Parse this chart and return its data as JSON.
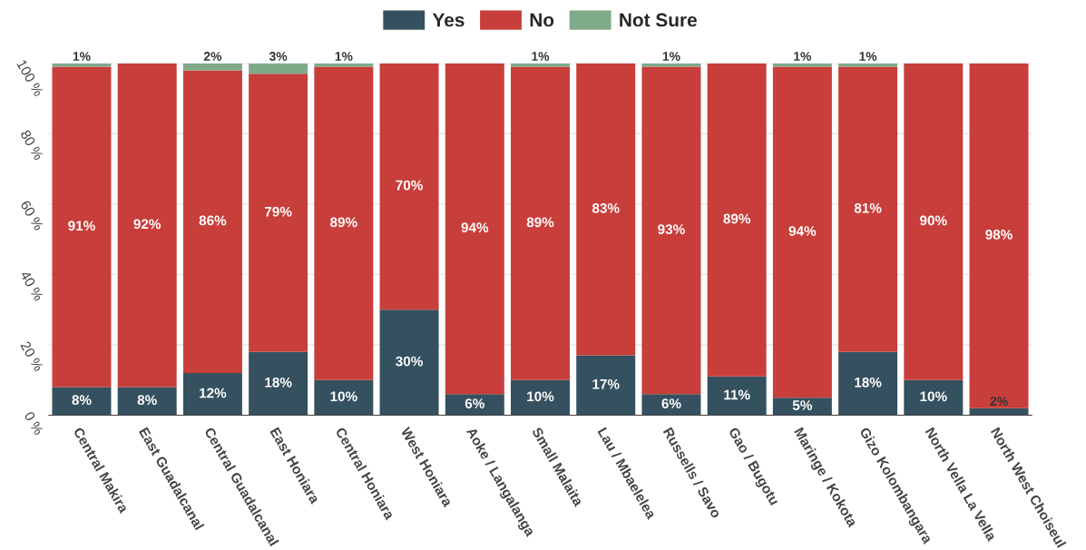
{
  "chart_data": {
    "type": "bar",
    "stacked": true,
    "categories": [
      "Central Makira",
      "East Guadalcanal",
      "Central Guadalcanal",
      "East Honiara",
      "Central Honiara",
      "West Honiara",
      "Aoke / Langalanga",
      "Small Malaita",
      "Lau / Mbaelelea",
      "Russells / Savo",
      "Gao / Bugotu",
      "Maringe / Kokota",
      "Gizo Kolombangara",
      "North Vella La Vella",
      "North West Choiseul"
    ],
    "series": [
      {
        "name": "Yes",
        "color": "#35505f",
        "values": [
          8,
          8,
          12,
          18,
          10,
          30,
          6,
          10,
          17,
          6,
          11,
          5,
          18,
          10,
          2
        ],
        "value_labels": [
          "8%",
          "8%",
          "12%",
          "18%",
          "10%",
          "30%",
          "6%",
          "10%",
          "17%",
          "6%",
          "11%",
          "5%",
          "18%",
          "10%",
          "2%"
        ]
      },
      {
        "name": "No",
        "color": "#c83e3a",
        "values": [
          91,
          92,
          86,
          79,
          89,
          70,
          94,
          89,
          83,
          93,
          89,
          94,
          81,
          90,
          98
        ],
        "value_labels": [
          "91%",
          "92%",
          "86%",
          "79%",
          "89%",
          "70%",
          "94%",
          "89%",
          "83%",
          "93%",
          "89%",
          "94%",
          "81%",
          "90%",
          "98%"
        ]
      },
      {
        "name": "Not Sure",
        "color": "#7faa8a",
        "values": [
          1,
          0,
          2,
          3,
          1,
          0,
          0,
          1,
          0,
          1,
          0,
          1,
          1,
          0,
          0
        ],
        "value_labels": [
          "1%",
          null,
          "2%",
          "3%",
          "1%",
          null,
          null,
          "1%",
          null,
          "1%",
          null,
          "1%",
          "1%",
          null,
          null
        ]
      }
    ],
    "ylim": [
      0,
      100
    ],
    "yticks": [
      {
        "value": 0,
        "label": "0 %"
      },
      {
        "value": 20,
        "label": "20 %"
      },
      {
        "value": 40,
        "label": "40 %"
      },
      {
        "value": 60,
        "label": "60 %"
      },
      {
        "value": 80,
        "label": "80 %"
      },
      {
        "value": 100,
        "label": "100 %"
      }
    ],
    "grid": "y",
    "legend": "top"
  }
}
